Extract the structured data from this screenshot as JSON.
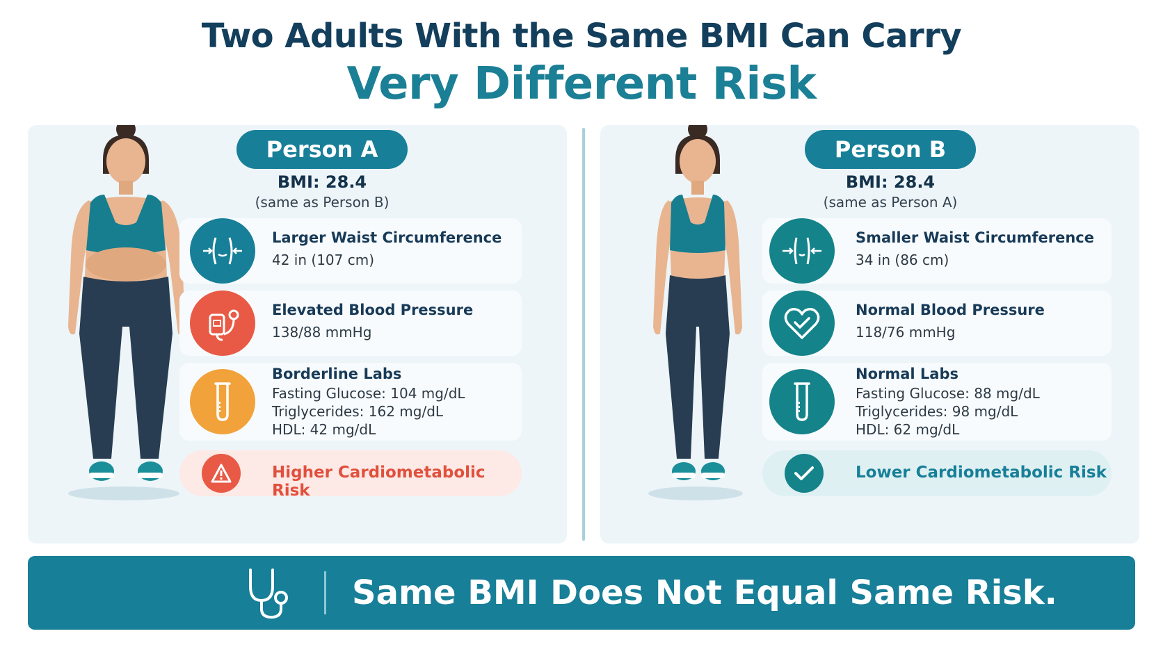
{
  "title": {
    "line1": "Two Adults With the Same BMI Can Carry",
    "line2": "Very Different Risk"
  },
  "person_a": {
    "label": "Person A",
    "bmi": "BMI: 28.4",
    "bmi_note": "(same as Person B)",
    "waist": {
      "title": "Larger Waist Circumference",
      "value": "42 in (107 cm)",
      "icon": "waist-measure-icon"
    },
    "bp": {
      "title": "Elevated Blood Pressure",
      "value": "138/88 mmHg",
      "icon": "blood-pressure-cuff-icon"
    },
    "labs": {
      "title": "Borderline Labs",
      "lines": [
        "Fasting Glucose: 104 mg/dL",
        "Triglycerides: 162 mg/dL",
        "HDL: 42 mg/dL"
      ],
      "icon": "test-tube-icon"
    },
    "risk": {
      "text": "Higher Cardiometabolic Risk",
      "icon": "warning-icon"
    }
  },
  "person_b": {
    "label": "Person B",
    "bmi": "BMI: 28.4",
    "bmi_note": "(same as Person A)",
    "waist": {
      "title": "Smaller Waist Circumference",
      "value": "34 in (86 cm)",
      "icon": "waist-measure-icon"
    },
    "bp": {
      "title": "Normal Blood Pressure",
      "value": "118/76 mmHg",
      "icon": "heart-check-icon"
    },
    "labs": {
      "title": "Normal Labs",
      "lines": [
        "Fasting Glucose: 88 mg/dL",
        "Triglycerides: 98 mg/dL",
        "HDL: 62 mg/dL"
      ],
      "icon": "test-tube-icon"
    },
    "risk": {
      "text": "Lower Cardiometabolic Risk",
      "icon": "checkmark-icon"
    }
  },
  "banner": {
    "text": "Same BMI Does Not Equal Same Risk.",
    "icon": "stethoscope-icon"
  },
  "colors": {
    "navy": "#133f5c",
    "teal": "#177f98",
    "teal_dark": "#14838a",
    "red": "#e85a45",
    "orange": "#f2a23a",
    "risk_high_bg": "#fde9e5",
    "risk_low_bg": "#dff0f3",
    "panel_bg": "#edf5f9"
  }
}
